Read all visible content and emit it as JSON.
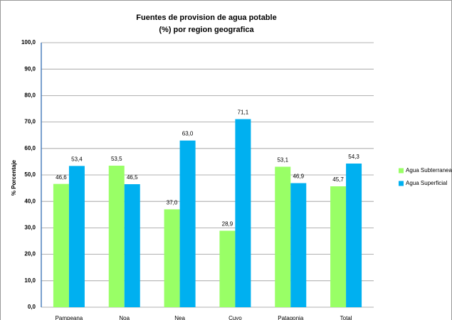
{
  "chart_data": {
    "type": "bar",
    "title": "Fuentes de provision  de agua potable",
    "subtitle": "(%)  por region geografica",
    "y_label": "% Porcentaje",
    "categories": [
      "Pampeana",
      "Noa",
      "Nea",
      "Cuyo",
      "Patagonia",
      "Total"
    ],
    "series": [
      {
        "name": "Agua Subterranea",
        "color": "#99ff66",
        "values": [
          46.6,
          53.5,
          37.0,
          28.9,
          53.1,
          45.7
        ],
        "value_labels": [
          "46,6",
          "53,5",
          "37,0",
          "28,9",
          "53,1",
          "45,7"
        ]
      },
      {
        "name": "Agua Superficial",
        "color": "#00b0f0",
        "values": [
          53.4,
          46.5,
          63.0,
          71.1,
          46.9,
          54.3
        ],
        "value_labels": [
          "53,4",
          "46,5",
          "63,0",
          "71,1",
          "46,9",
          "54,3"
        ]
      }
    ],
    "ylim": [
      0,
      100
    ],
    "yticks": [
      {
        "value": 0,
        "label": "0,0"
      },
      {
        "value": 10,
        "label": "10,0"
      },
      {
        "value": 20,
        "label": "20,0"
      },
      {
        "value": 30,
        "label": "30,0"
      },
      {
        "value": 40,
        "label": "40,0"
      },
      {
        "value": 50,
        "label": "50,0"
      },
      {
        "value": 60,
        "label": "60,0"
      },
      {
        "value": 70,
        "label": "70,0"
      },
      {
        "value": 80,
        "label": "80,0"
      },
      {
        "value": 90,
        "label": "90,0"
      },
      {
        "value": 100,
        "label": "100,0"
      }
    ],
    "grid": true,
    "legend": "right"
  }
}
